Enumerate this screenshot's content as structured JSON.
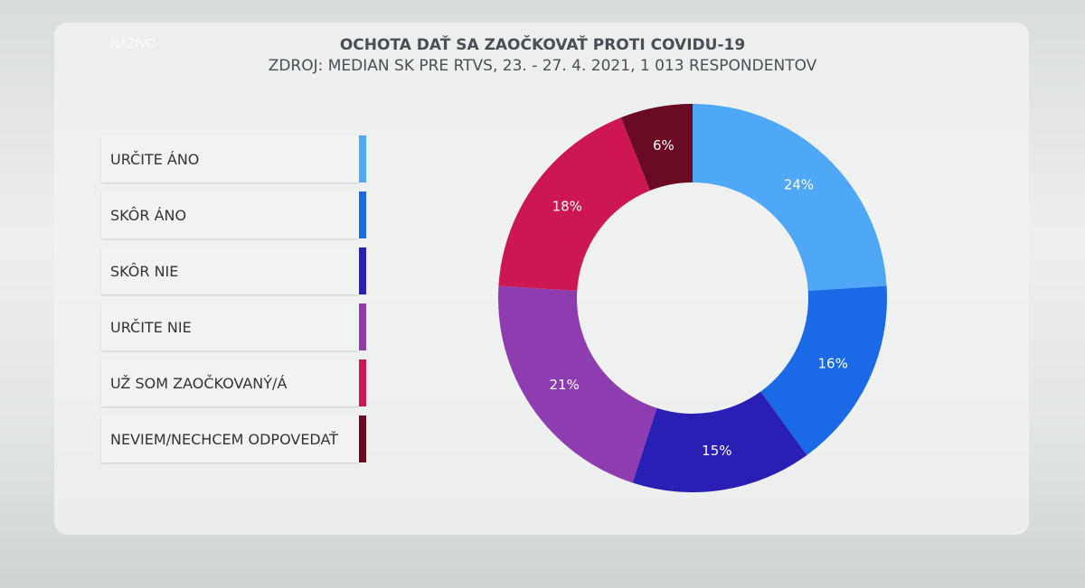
{
  "badge": "NAŽIVO",
  "chart_data": {
    "type": "pie",
    "title": "OCHOTA DAŤ SA ZAOČKOVAŤ PROTI COVIDU-19",
    "subtitle": "ZDROJ: MEDIAN SK PRE RTVS, 23. - 27. 4. 2021, 1 013 RESPONDENTOV",
    "categories": [
      "URČITE ÁNO",
      "SKÔR ÁNO",
      "SKÔR NIE",
      "URČITE NIE",
      "UŽ SOM ZAOČKOVANÝ/Á",
      "NEVIEM/NECHCEM ODPOVEDAŤ"
    ],
    "values": [
      24,
      16,
      15,
      21,
      18,
      6
    ],
    "value_labels": [
      "24%",
      "16%",
      "15%",
      "21%",
      "18%",
      "6%"
    ],
    "colors": [
      "#4ea8f7",
      "#1a6ae8",
      "#2a1fb5",
      "#8e3db0",
      "#cc1753",
      "#6b0a23"
    ],
    "donut": true
  }
}
